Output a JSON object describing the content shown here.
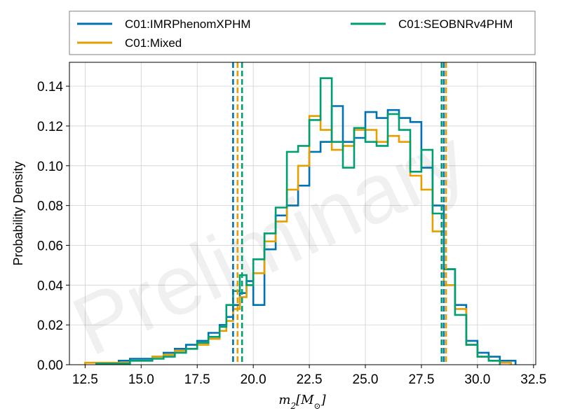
{
  "chart_data": {
    "type": "step-histogram",
    "xlabel": "m_2[M_⊙]",
    "xlabel_parts": {
      "var": "m",
      "sub": "2",
      "unit_open": "[M",
      "unit_sub": "⊙",
      "unit_close": "]"
    },
    "ylabel": "Probability Density",
    "watermark": "Preliminary",
    "xlim": [
      11.8,
      32.6
    ],
    "ylim": [
      0,
      0.152
    ],
    "xticks": [
      "12.5",
      "15.0",
      "17.5",
      "20.0",
      "22.5",
      "25.0",
      "27.5",
      "30.0",
      "32.5"
    ],
    "xtick_values": [
      12.5,
      15.0,
      17.5,
      20.0,
      22.5,
      25.0,
      27.5,
      30.0,
      32.5
    ],
    "yticks": [
      "0.00",
      "0.02",
      "0.04",
      "0.06",
      "0.08",
      "0.10",
      "0.12",
      "0.14"
    ],
    "ytick_values": [
      0.0,
      0.02,
      0.04,
      0.06,
      0.08,
      0.1,
      0.12,
      0.14
    ],
    "grid": true,
    "legend_position": "above-plot",
    "series": [
      {
        "name": "C01:IMRPhenomXPHM",
        "color": "#0072B2",
        "edges": [
          13.0,
          14.0,
          14.5,
          15.0,
          15.5,
          16.0,
          16.5,
          17.0,
          17.5,
          18.0,
          18.5,
          18.8,
          19.1,
          19.4,
          19.7,
          20.0,
          20.5,
          21.0,
          21.5,
          22.0,
          22.5,
          23.0,
          23.5,
          24.0,
          24.5,
          25.0,
          25.5,
          26.0,
          26.5,
          27.0,
          27.5,
          28.0,
          28.5,
          29.0,
          29.5,
          30.0,
          30.5,
          31.0,
          31.7
        ],
        "heights": [
          0.0005,
          0.002,
          0.003,
          0.003,
          0.004,
          0.006,
          0.008,
          0.01,
          0.012,
          0.016,
          0.02,
          0.024,
          0.03,
          0.036,
          0.042,
          0.03,
          0.058,
          0.075,
          0.08,
          0.09,
          0.107,
          0.112,
          0.13,
          0.112,
          0.114,
          0.127,
          0.124,
          0.128,
          0.124,
          0.122,
          0.099,
          0.08,
          0.048,
          0.03,
          0.012,
          0.006,
          0.004,
          0.002
        ]
      },
      {
        "name": "C01:Mixed",
        "color": "#E69F00",
        "edges": [
          12.5,
          13.5,
          14.5,
          15.0,
          15.5,
          16.0,
          16.5,
          17.0,
          17.5,
          18.0,
          18.5,
          18.8,
          19.1,
          19.4,
          19.7,
          20.0,
          20.5,
          21.0,
          21.5,
          22.0,
          22.5,
          23.0,
          23.5,
          24.0,
          24.5,
          25.0,
          25.5,
          26.0,
          26.5,
          27.0,
          27.5,
          28.0,
          28.5,
          29.0,
          29.5,
          30.0,
          30.5,
          31.0,
          31.5
        ],
        "heights": [
          0.001,
          0.001,
          0.002,
          0.002,
          0.004,
          0.005,
          0.007,
          0.008,
          0.01,
          0.013,
          0.017,
          0.022,
          0.028,
          0.034,
          0.04,
          0.046,
          0.062,
          0.072,
          0.088,
          0.1,
          0.125,
          0.118,
          0.108,
          0.11,
          0.118,
          0.118,
          0.112,
          0.115,
          0.112,
          0.095,
          0.088,
          0.067,
          0.04,
          0.028,
          0.01,
          0.004,
          0.002,
          0.001
        ]
      },
      {
        "name": "C01:SEOBNRv4PHM",
        "color": "#009E73",
        "edges": [
          13.0,
          14.5,
          15.5,
          16.0,
          16.5,
          17.0,
          17.5,
          18.0,
          18.5,
          18.8,
          19.1,
          19.4,
          19.7,
          20.0,
          20.5,
          21.0,
          21.5,
          22.0,
          22.5,
          23.0,
          23.5,
          24.0,
          24.5,
          25.0,
          25.5,
          26.0,
          26.5,
          27.0,
          27.5,
          28.0,
          28.5,
          29.0,
          29.5,
          30.0,
          30.5,
          31.0
        ],
        "heights": [
          0.0005,
          0.002,
          0.003,
          0.004,
          0.006,
          0.008,
          0.011,
          0.014,
          0.019,
          0.03,
          0.037,
          0.045,
          0.04,
          0.053,
          0.066,
          0.079,
          0.107,
          0.11,
          0.123,
          0.144,
          0.112,
          0.099,
          0.119,
          0.112,
          0.11,
          0.126,
          0.118,
          0.097,
          0.108,
          0.076,
          0.048,
          0.025,
          0.01,
          0.004,
          0.002
        ]
      }
    ],
    "vlines": [
      {
        "series": "C01:IMRPhenomXPHM",
        "color": "#0072B2",
        "values": [
          19.1,
          28.5
        ]
      },
      {
        "series": "C01:Mixed",
        "color": "#E69F00",
        "values": [
          19.3,
          28.6
        ]
      },
      {
        "series": "C01:SEOBNRv4PHM",
        "color": "#009E73",
        "values": [
          19.5,
          28.4
        ]
      }
    ]
  }
}
